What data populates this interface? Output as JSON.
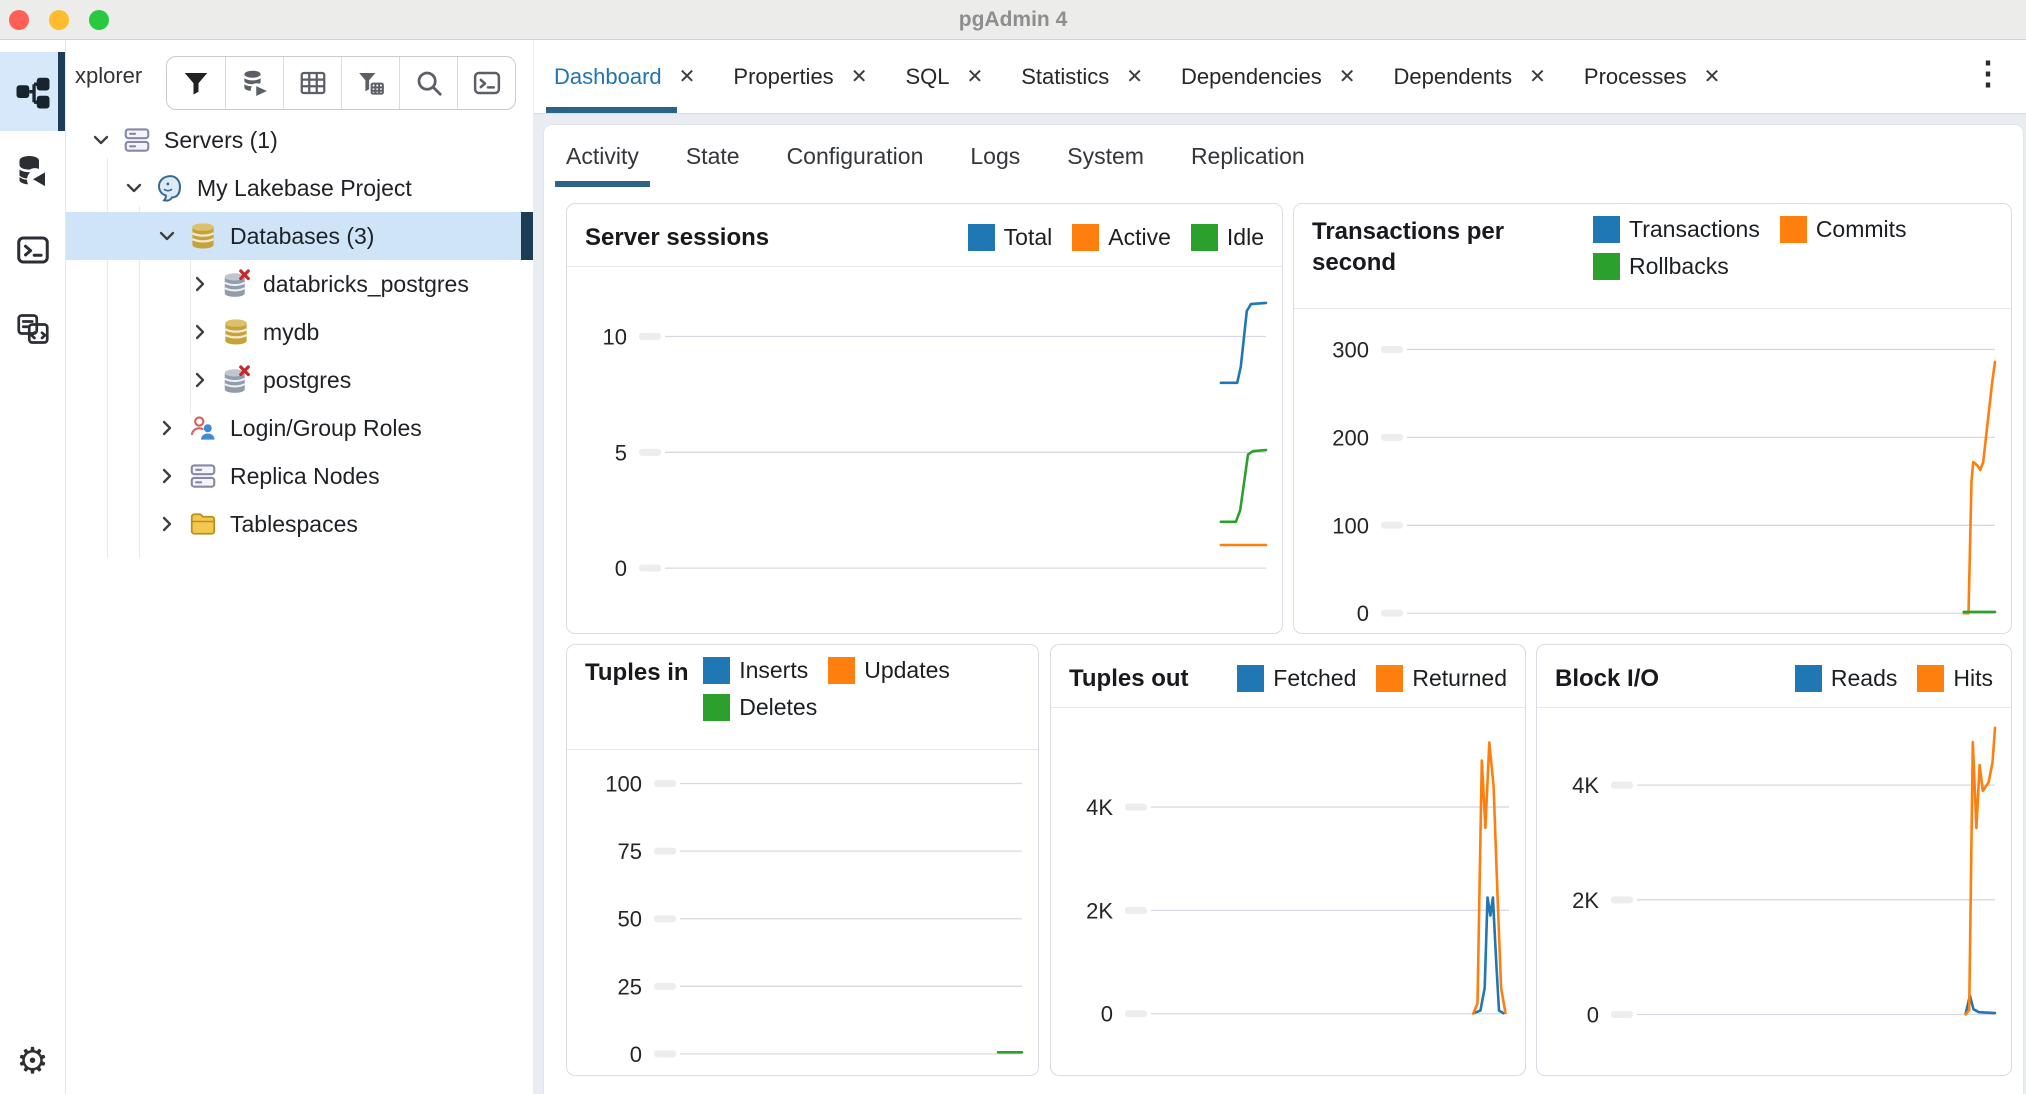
{
  "window": {
    "title": "pgAdmin 4"
  },
  "traffic_lights": {
    "close": "#ff5f57",
    "minimize": "#febc2e",
    "zoom": "#28c840"
  },
  "rail": {
    "items": [
      {
        "name": "object-explorer",
        "icon": "object-explorer-icon",
        "active": true
      },
      {
        "name": "query-tool",
        "icon": "query-tool-icon",
        "active": false
      },
      {
        "name": "psql-tool",
        "icon": "terminal-icon",
        "active": false
      },
      {
        "name": "schema-diff",
        "icon": "schema-diff-icon",
        "active": false
      }
    ],
    "bottom": {
      "name": "preferences",
      "icon": "gear-icon"
    }
  },
  "explorer": {
    "title_fragment": "xplorer",
    "buttons": [
      {
        "name": "filter",
        "icon": "filter-icon"
      },
      {
        "name": "view-data",
        "icon": "view-data-icon"
      },
      {
        "name": "table-grid",
        "icon": "grid-icon"
      },
      {
        "name": "filtered-rows",
        "icon": "filter-grid-icon"
      },
      {
        "name": "search",
        "icon": "search-icon"
      },
      {
        "name": "psql-terminal",
        "icon": "terminal-icon"
      }
    ]
  },
  "tree": {
    "selected_color": "#cfe4f7",
    "rows": [
      {
        "label": "Servers (1)",
        "level": 0,
        "chevron": "down",
        "icon": "servers-icon",
        "selected": false
      },
      {
        "label": "My Lakebase Project",
        "level": 1,
        "chevron": "down",
        "icon": "postgres-icon",
        "selected": false
      },
      {
        "label": "Databases (3)",
        "level": 2,
        "chevron": "down",
        "icon": "database-icon",
        "selected": true
      },
      {
        "label": "databricks_postgres",
        "level": 3,
        "chevron": "right",
        "icon": "database-disconnected-icon",
        "selected": false
      },
      {
        "label": "mydb",
        "level": 3,
        "chevron": "right",
        "icon": "database-icon",
        "selected": false
      },
      {
        "label": "postgres",
        "level": 3,
        "chevron": "right",
        "icon": "database-disconnected-icon",
        "selected": false
      },
      {
        "label": "Login/Group Roles",
        "level": 2,
        "chevron": "right",
        "icon": "roles-icon",
        "selected": false
      },
      {
        "label": "Replica Nodes",
        "level": 2,
        "chevron": "right",
        "icon": "replica-nodes-icon",
        "selected": false
      },
      {
        "label": "Tablespaces",
        "level": 2,
        "chevron": "right",
        "icon": "tablespaces-icon",
        "selected": false
      }
    ]
  },
  "tabbar": {
    "tabs": [
      {
        "label": "Dashboard",
        "active": true,
        "closable": true
      },
      {
        "label": "Properties",
        "active": false,
        "closable": true
      },
      {
        "label": "SQL",
        "active": false,
        "closable": true
      },
      {
        "label": "Statistics",
        "active": false,
        "closable": true
      },
      {
        "label": "Dependencies",
        "active": false,
        "closable": true
      },
      {
        "label": "Dependents",
        "active": false,
        "closable": true
      },
      {
        "label": "Processes",
        "active": false,
        "closable": true
      }
    ],
    "close_glyph": "✕",
    "overflow_menu_glyph": "⋮"
  },
  "subtabs": [
    {
      "label": "Activity",
      "active": true
    },
    {
      "label": "State",
      "active": false
    },
    {
      "label": "Configuration",
      "active": false
    },
    {
      "label": "Logs",
      "active": false
    },
    {
      "label": "System",
      "active": false
    },
    {
      "label": "Replication",
      "active": false
    }
  ],
  "colors": {
    "series_blue": "#1f77b4",
    "series_orange": "#ff7f0e",
    "series_green": "#2ca02c",
    "active_underline": "#2c6487",
    "selection_blue": "#cfe4f7",
    "indicator_navy": "#1d3c56"
  },
  "chart_data": [
    {
      "id": "server-sessions",
      "type": "line",
      "title": "Server sessions",
      "ytick_labels": [
        "10",
        "5",
        "0"
      ],
      "yticks": [
        10,
        5,
        0
      ],
      "ylim_plot": [
        -2.8,
        13
      ],
      "xticks": [],
      "grid": true,
      "legend_position": "top-right",
      "series": [
        {
          "name": "Total",
          "color": "#1f77b4",
          "points": [
            [
              0.925,
              8
            ],
            [
              0.952,
              8
            ],
            [
              0.958,
              8.7
            ],
            [
              0.968,
              11.1
            ],
            [
              0.975,
              11.4
            ],
            [
              1,
              11.45
            ]
          ]
        },
        {
          "name": "Active",
          "color": "#ff7f0e",
          "points": [
            [
              0.925,
              1
            ],
            [
              1,
              1
            ]
          ]
        },
        {
          "name": "Idle",
          "color": "#2ca02c",
          "points": [
            [
              0.925,
              2
            ],
            [
              0.95,
              2
            ],
            [
              0.957,
              2.5
            ],
            [
              0.97,
              4.9
            ],
            [
              0.978,
              5.05
            ],
            [
              1,
              5.1
            ]
          ]
        }
      ]
    },
    {
      "id": "transactions-per-second",
      "type": "line",
      "title": "Transactions per second",
      "ytick_labels": [
        "300",
        "200",
        "100",
        "0"
      ],
      "yticks": [
        300,
        200,
        100,
        0
      ],
      "ylim_plot": [
        -22.5,
        346
      ],
      "xticks": [],
      "grid": true,
      "legend_position": "top-right",
      "series": [
        {
          "name": "Transactions",
          "color": "#1f77b4",
          "points": []
        },
        {
          "name": "Commits",
          "color": "#ff7f0e",
          "points": [
            [
              0.947,
              0
            ],
            [
              0.955,
              0
            ],
            [
              0.96,
              150
            ],
            [
              0.963,
              172
            ],
            [
              0.97,
              168
            ],
            [
              0.975,
              163
            ],
            [
              0.98,
              172
            ],
            [
              0.995,
              262
            ],
            [
              1,
              286
            ]
          ]
        },
        {
          "name": "Rollbacks",
          "color": "#2ca02c",
          "points": [
            [
              0.947,
              1.5
            ],
            [
              1,
              1.5
            ]
          ]
        }
      ]
    },
    {
      "id": "tuples-in",
      "type": "line",
      "title": "Tuples in",
      "ytick_labels": [
        "100",
        "75",
        "50",
        "25",
        "0"
      ],
      "yticks": [
        100,
        75,
        50,
        25,
        0
      ],
      "ylim_plot": [
        -7.8,
        112.4
      ],
      "xticks": [],
      "grid": true,
      "legend_position": "top",
      "series": [
        {
          "name": "Inserts",
          "color": "#1f77b4",
          "points": []
        },
        {
          "name": "Updates",
          "color": "#ff7f0e",
          "points": []
        },
        {
          "name": "Deletes",
          "color": "#2ca02c",
          "points": [
            [
              0.93,
              0.6
            ],
            [
              1,
              0.6
            ]
          ]
        }
      ]
    },
    {
      "id": "tuples-out",
      "type": "line",
      "title": "Tuples out",
      "ytick_labels": [
        "4K",
        "2K",
        "0"
      ],
      "yticks": [
        4000,
        2000,
        0
      ],
      "ylim_plot": [
        -1186,
        5918
      ],
      "xticks": [],
      "grid": true,
      "legend_position": "top-right",
      "series": [
        {
          "name": "Fetched",
          "color": "#1f77b4",
          "points": [
            [
              0.905,
              20
            ],
            [
              0.92,
              60
            ],
            [
              0.932,
              500
            ],
            [
              0.94,
              2250
            ],
            [
              0.948,
              1900
            ],
            [
              0.955,
              2250
            ],
            [
              0.965,
              900
            ],
            [
              0.972,
              60
            ],
            [
              0.985,
              10
            ]
          ]
        },
        {
          "name": "Returned",
          "color": "#ff7f0e",
          "points": [
            [
              0.9,
              0
            ],
            [
              0.912,
              200
            ],
            [
              0.924,
              4900
            ],
            [
              0.934,
              3600
            ],
            [
              0.945,
              5250
            ],
            [
              0.957,
              4400
            ],
            [
              0.968,
              2300
            ],
            [
              0.978,
              500
            ],
            [
              0.99,
              20
            ]
          ]
        }
      ]
    },
    {
      "id": "block-io",
      "type": "line",
      "title": "Block I/O",
      "ytick_labels": [
        "4K",
        "2K",
        "0"
      ],
      "yticks": [
        4000,
        2000,
        0
      ],
      "ylim_plot": [
        -1055,
        5345
      ],
      "xticks": [],
      "grid": true,
      "legend_position": "top-right",
      "series": [
        {
          "name": "Reads",
          "color": "#1f77b4",
          "points": [
            [
              0.918,
              10
            ],
            [
              0.93,
              330
            ],
            [
              0.94,
              90
            ],
            [
              0.955,
              40
            ],
            [
              1,
              25
            ]
          ]
        },
        {
          "name": "Hits",
          "color": "#ff7f0e",
          "points": [
            [
              0.918,
              0
            ],
            [
              0.928,
              80
            ],
            [
              0.938,
              4750
            ],
            [
              0.948,
              3250
            ],
            [
              0.957,
              4350
            ],
            [
              0.966,
              3900
            ],
            [
              0.982,
              4050
            ],
            [
              0.993,
              4400
            ],
            [
              1,
              5000
            ]
          ]
        }
      ]
    }
  ]
}
